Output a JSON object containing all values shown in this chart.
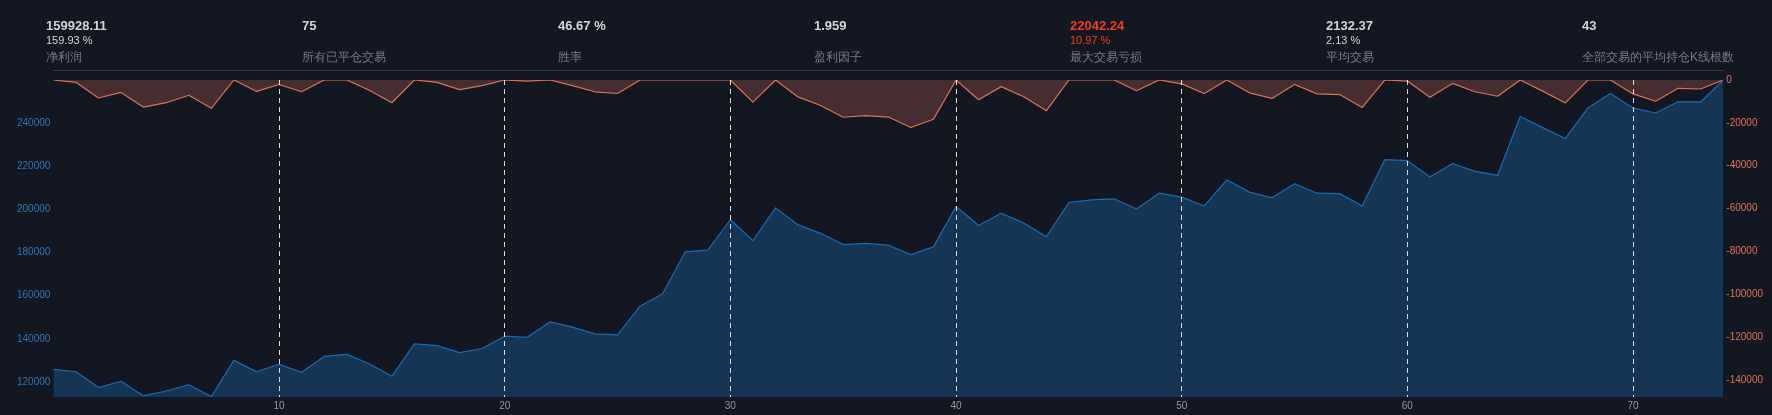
{
  "chart_data": [
    {
      "type": "other",
      "categories": [
        "净利润",
        "所有已平仓交易",
        "胜率",
        "盈利因子",
        "最大交易亏损",
        "平均交易",
        "全部交易的平均持仓K线根数"
      ],
      "series": [
        {
          "values": [
            159928.11,
            75,
            46.67,
            1.959,
            22042.24,
            2132.37,
            43
          ],
          "value_labels": [
            "159928.11",
            "75",
            "46.67 %",
            "1.959",
            "22042.24",
            "2132.37",
            "43"
          ],
          "colors": [
            "#d1d4dc",
            "#d1d4dc",
            "#d1d4dc",
            "#d1d4dc",
            "#f23d1e",
            "#d1d4dc",
            "#d1d4dc"
          ]
        },
        {
          "values": [
            159.93,
            null,
            null,
            null,
            10.97,
            2.13,
            null
          ],
          "value_labels": [
            "159.93 %",
            null,
            null,
            null,
            "10.97 %",
            "2.13 %",
            null
          ],
          "colors": [
            "#d1d4dc",
            null,
            null,
            null,
            "#f23d1e",
            "#d1d4dc",
            null
          ]
        }
      ]
    },
    {
      "type": "area",
      "x": [
        0,
        1,
        2,
        3,
        4,
        5,
        6,
        7,
        8,
        9,
        10,
        11,
        12,
        13,
        14,
        15,
        16,
        17,
        18,
        19,
        20,
        21,
        22,
        23,
        24,
        25,
        26,
        27,
        28,
        29,
        30,
        31,
        32,
        33,
        34,
        35,
        36,
        37,
        38,
        39,
        40,
        41,
        42,
        43,
        44,
        45,
        46,
        47,
        48,
        49,
        50,
        51,
        52,
        53,
        54,
        55,
        56,
        57,
        58,
        59,
        60,
        61,
        62,
        63,
        64,
        65,
        66,
        67,
        68,
        69,
        70,
        71,
        72,
        73,
        74
      ],
      "series": [
        {
          "color": "#1c6bb0",
          "values": [
            125800,
            124700,
            117400,
            120300,
            113500,
            115800,
            118700,
            113200,
            130000,
            124700,
            128100,
            124500,
            131800,
            132800,
            128400,
            122600,
            137600,
            136800,
            133600,
            135500,
            141200,
            140700,
            147800,
            145400,
            142300,
            141800,
            155100,
            160900,
            180300,
            181100,
            195200,
            185500,
            200700,
            192800,
            188900,
            183700,
            184200,
            183400,
            179000,
            182600,
            201300,
            192500,
            198200,
            193700,
            187300,
            203100,
            204400,
            204900,
            200200,
            207500,
            205700,
            201600,
            213700,
            208000,
            205400,
            211900,
            207500,
            207300,
            201600,
            223100,
            222600,
            215000,
            221300,
            217600,
            215800,
            243100,
            237900,
            232900,
            247000,
            253700,
            247000,
            244700,
            249900,
            249900,
            259900
          ]
        },
        {
          "color": "#e0705a",
          "axis": "y2",
          "values": [
            0,
            -1100,
            -8400,
            -5800,
            -12700,
            -10600,
            -7100,
            -13200,
            0,
            -5300,
            -2100,
            -5500,
            0,
            0,
            -4800,
            -10600,
            0,
            -1100,
            -4500,
            -2600,
            0,
            -500,
            0,
            -2600,
            -5500,
            -6300,
            0,
            0,
            0,
            0,
            0,
            -10300,
            0,
            -7900,
            -11900,
            -17400,
            -16600,
            -17300,
            -22200,
            -18300,
            0,
            -9200,
            -3100,
            -7800,
            -14400,
            0,
            0,
            0,
            -5000,
            0,
            -1800,
            -6300,
            0,
            -6000,
            -8600,
            -2100,
            -6500,
            -6800,
            -12800,
            0,
            -500,
            -8100,
            -1600,
            -5500,
            -7600,
            0,
            -5200,
            -10700,
            0,
            0,
            -6500,
            -9900,
            -3900,
            -4200,
            0
          ]
        }
      ],
      "xlim": [
        0,
        74
      ],
      "xticks": [
        10,
        20,
        30,
        40,
        50,
        60,
        70
      ],
      "ylim": [
        113000,
        260000
      ],
      "yticks": [
        120000,
        140000,
        160000,
        180000,
        200000,
        220000,
        240000
      ],
      "y2lim": [
        -148000,
        0
      ],
      "y2ticks": [
        0,
        -20000,
        -40000,
        -60000,
        -80000,
        -100000,
        -120000,
        -140000
      ],
      "grid": "x"
    }
  ]
}
